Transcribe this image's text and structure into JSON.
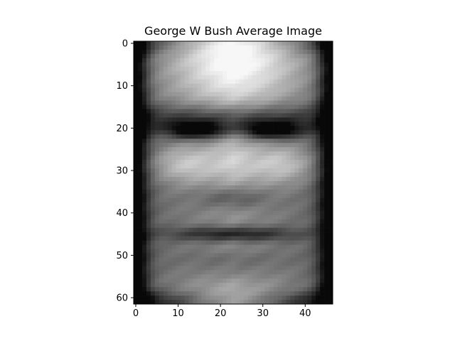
{
  "chart_data": {
    "type": "heatmap",
    "title": "George W Bush Average Image",
    "xlabel": "",
    "ylabel": "",
    "colormap": "gray",
    "shape": [
      62,
      47
    ],
    "xlim": [
      -0.5,
      46.5
    ],
    "ylim": [
      61.5,
      -0.5
    ],
    "x_ticks": [
      0,
      10,
      20,
      30,
      40
    ],
    "y_ticks": [
      0,
      10,
      20,
      30,
      40,
      50,
      60
    ],
    "x_tick_labels": [
      "0",
      "10",
      "20",
      "30",
      "40"
    ],
    "y_tick_labels": [
      "0",
      "10",
      "20",
      "30",
      "40",
      "50",
      "60"
    ],
    "grid": false,
    "legend": "none"
  }
}
